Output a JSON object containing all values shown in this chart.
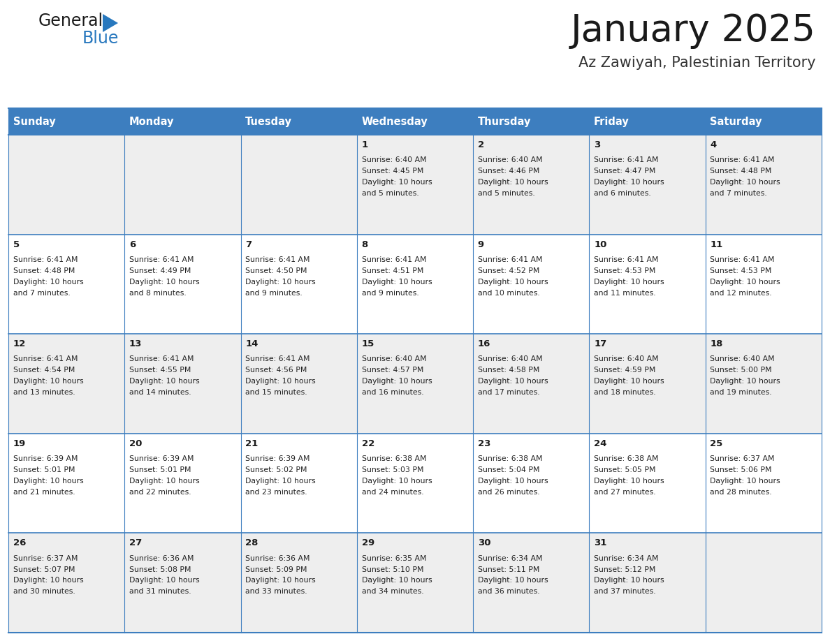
{
  "title": "January 2025",
  "subtitle": "Az Zawiyah, Palestinian Territory",
  "header_color": "#3D7EBF",
  "header_text_color": "#FFFFFF",
  "border_color": "#3D7EBF",
  "row_colors": [
    "#EEEEEE",
    "#FFFFFF",
    "#EEEEEE",
    "#FFFFFF",
    "#EEEEEE"
  ],
  "day_names": [
    "Sunday",
    "Monday",
    "Tuesday",
    "Wednesday",
    "Thursday",
    "Friday",
    "Saturday"
  ],
  "days_data": [
    {
      "day": 1,
      "col": 3,
      "row": 0,
      "sunrise": "6:40 AM",
      "sunset": "4:45 PM",
      "daylight_h": "10 hours",
      "daylight_m": "and 5 minutes."
    },
    {
      "day": 2,
      "col": 4,
      "row": 0,
      "sunrise": "6:40 AM",
      "sunset": "4:46 PM",
      "daylight_h": "10 hours",
      "daylight_m": "and 5 minutes."
    },
    {
      "day": 3,
      "col": 5,
      "row": 0,
      "sunrise": "6:41 AM",
      "sunset": "4:47 PM",
      "daylight_h": "10 hours",
      "daylight_m": "and 6 minutes."
    },
    {
      "day": 4,
      "col": 6,
      "row": 0,
      "sunrise": "6:41 AM",
      "sunset": "4:48 PM",
      "daylight_h": "10 hours",
      "daylight_m": "and 7 minutes."
    },
    {
      "day": 5,
      "col": 0,
      "row": 1,
      "sunrise": "6:41 AM",
      "sunset": "4:48 PM",
      "daylight_h": "10 hours",
      "daylight_m": "and 7 minutes."
    },
    {
      "day": 6,
      "col": 1,
      "row": 1,
      "sunrise": "6:41 AM",
      "sunset": "4:49 PM",
      "daylight_h": "10 hours",
      "daylight_m": "and 8 minutes."
    },
    {
      "day": 7,
      "col": 2,
      "row": 1,
      "sunrise": "6:41 AM",
      "sunset": "4:50 PM",
      "daylight_h": "10 hours",
      "daylight_m": "and 9 minutes."
    },
    {
      "day": 8,
      "col": 3,
      "row": 1,
      "sunrise": "6:41 AM",
      "sunset": "4:51 PM",
      "daylight_h": "10 hours",
      "daylight_m": "and 9 minutes."
    },
    {
      "day": 9,
      "col": 4,
      "row": 1,
      "sunrise": "6:41 AM",
      "sunset": "4:52 PM",
      "daylight_h": "10 hours",
      "daylight_m": "and 10 minutes."
    },
    {
      "day": 10,
      "col": 5,
      "row": 1,
      "sunrise": "6:41 AM",
      "sunset": "4:53 PM",
      "daylight_h": "10 hours",
      "daylight_m": "and 11 minutes."
    },
    {
      "day": 11,
      "col": 6,
      "row": 1,
      "sunrise": "6:41 AM",
      "sunset": "4:53 PM",
      "daylight_h": "10 hours",
      "daylight_m": "and 12 minutes."
    },
    {
      "day": 12,
      "col": 0,
      "row": 2,
      "sunrise": "6:41 AM",
      "sunset": "4:54 PM",
      "daylight_h": "10 hours",
      "daylight_m": "and 13 minutes."
    },
    {
      "day": 13,
      "col": 1,
      "row": 2,
      "sunrise": "6:41 AM",
      "sunset": "4:55 PM",
      "daylight_h": "10 hours",
      "daylight_m": "and 14 minutes."
    },
    {
      "day": 14,
      "col": 2,
      "row": 2,
      "sunrise": "6:41 AM",
      "sunset": "4:56 PM",
      "daylight_h": "10 hours",
      "daylight_m": "and 15 minutes."
    },
    {
      "day": 15,
      "col": 3,
      "row": 2,
      "sunrise": "6:40 AM",
      "sunset": "4:57 PM",
      "daylight_h": "10 hours",
      "daylight_m": "and 16 minutes."
    },
    {
      "day": 16,
      "col": 4,
      "row": 2,
      "sunrise": "6:40 AM",
      "sunset": "4:58 PM",
      "daylight_h": "10 hours",
      "daylight_m": "and 17 minutes."
    },
    {
      "day": 17,
      "col": 5,
      "row": 2,
      "sunrise": "6:40 AM",
      "sunset": "4:59 PM",
      "daylight_h": "10 hours",
      "daylight_m": "and 18 minutes."
    },
    {
      "day": 18,
      "col": 6,
      "row": 2,
      "sunrise": "6:40 AM",
      "sunset": "5:00 PM",
      "daylight_h": "10 hours",
      "daylight_m": "and 19 minutes."
    },
    {
      "day": 19,
      "col": 0,
      "row": 3,
      "sunrise": "6:39 AM",
      "sunset": "5:01 PM",
      "daylight_h": "10 hours",
      "daylight_m": "and 21 minutes."
    },
    {
      "day": 20,
      "col": 1,
      "row": 3,
      "sunrise": "6:39 AM",
      "sunset": "5:01 PM",
      "daylight_h": "10 hours",
      "daylight_m": "and 22 minutes."
    },
    {
      "day": 21,
      "col": 2,
      "row": 3,
      "sunrise": "6:39 AM",
      "sunset": "5:02 PM",
      "daylight_h": "10 hours",
      "daylight_m": "and 23 minutes."
    },
    {
      "day": 22,
      "col": 3,
      "row": 3,
      "sunrise": "6:38 AM",
      "sunset": "5:03 PM",
      "daylight_h": "10 hours",
      "daylight_m": "and 24 minutes."
    },
    {
      "day": 23,
      "col": 4,
      "row": 3,
      "sunrise": "6:38 AM",
      "sunset": "5:04 PM",
      "daylight_h": "10 hours",
      "daylight_m": "and 26 minutes."
    },
    {
      "day": 24,
      "col": 5,
      "row": 3,
      "sunrise": "6:38 AM",
      "sunset": "5:05 PM",
      "daylight_h": "10 hours",
      "daylight_m": "and 27 minutes."
    },
    {
      "day": 25,
      "col": 6,
      "row": 3,
      "sunrise": "6:37 AM",
      "sunset": "5:06 PM",
      "daylight_h": "10 hours",
      "daylight_m": "and 28 minutes."
    },
    {
      "day": 26,
      "col": 0,
      "row": 4,
      "sunrise": "6:37 AM",
      "sunset": "5:07 PM",
      "daylight_h": "10 hours",
      "daylight_m": "and 30 minutes."
    },
    {
      "day": 27,
      "col": 1,
      "row": 4,
      "sunrise": "6:36 AM",
      "sunset": "5:08 PM",
      "daylight_h": "10 hours",
      "daylight_m": "and 31 minutes."
    },
    {
      "day": 28,
      "col": 2,
      "row": 4,
      "sunrise": "6:36 AM",
      "sunset": "5:09 PM",
      "daylight_h": "10 hours",
      "daylight_m": "and 33 minutes."
    },
    {
      "day": 29,
      "col": 3,
      "row": 4,
      "sunrise": "6:35 AM",
      "sunset": "5:10 PM",
      "daylight_h": "10 hours",
      "daylight_m": "and 34 minutes."
    },
    {
      "day": 30,
      "col": 4,
      "row": 4,
      "sunrise": "6:34 AM",
      "sunset": "5:11 PM",
      "daylight_h": "10 hours",
      "daylight_m": "and 36 minutes."
    },
    {
      "day": 31,
      "col": 5,
      "row": 4,
      "sunrise": "6:34 AM",
      "sunset": "5:12 PM",
      "daylight_h": "10 hours",
      "daylight_m": "and 37 minutes."
    }
  ],
  "logo_general_color": "#1a1a1a",
  "logo_blue_color": "#2878BE",
  "num_rows": 5,
  "num_cols": 7,
  "fig_width": 11.88,
  "fig_height": 9.18,
  "dpi": 100
}
